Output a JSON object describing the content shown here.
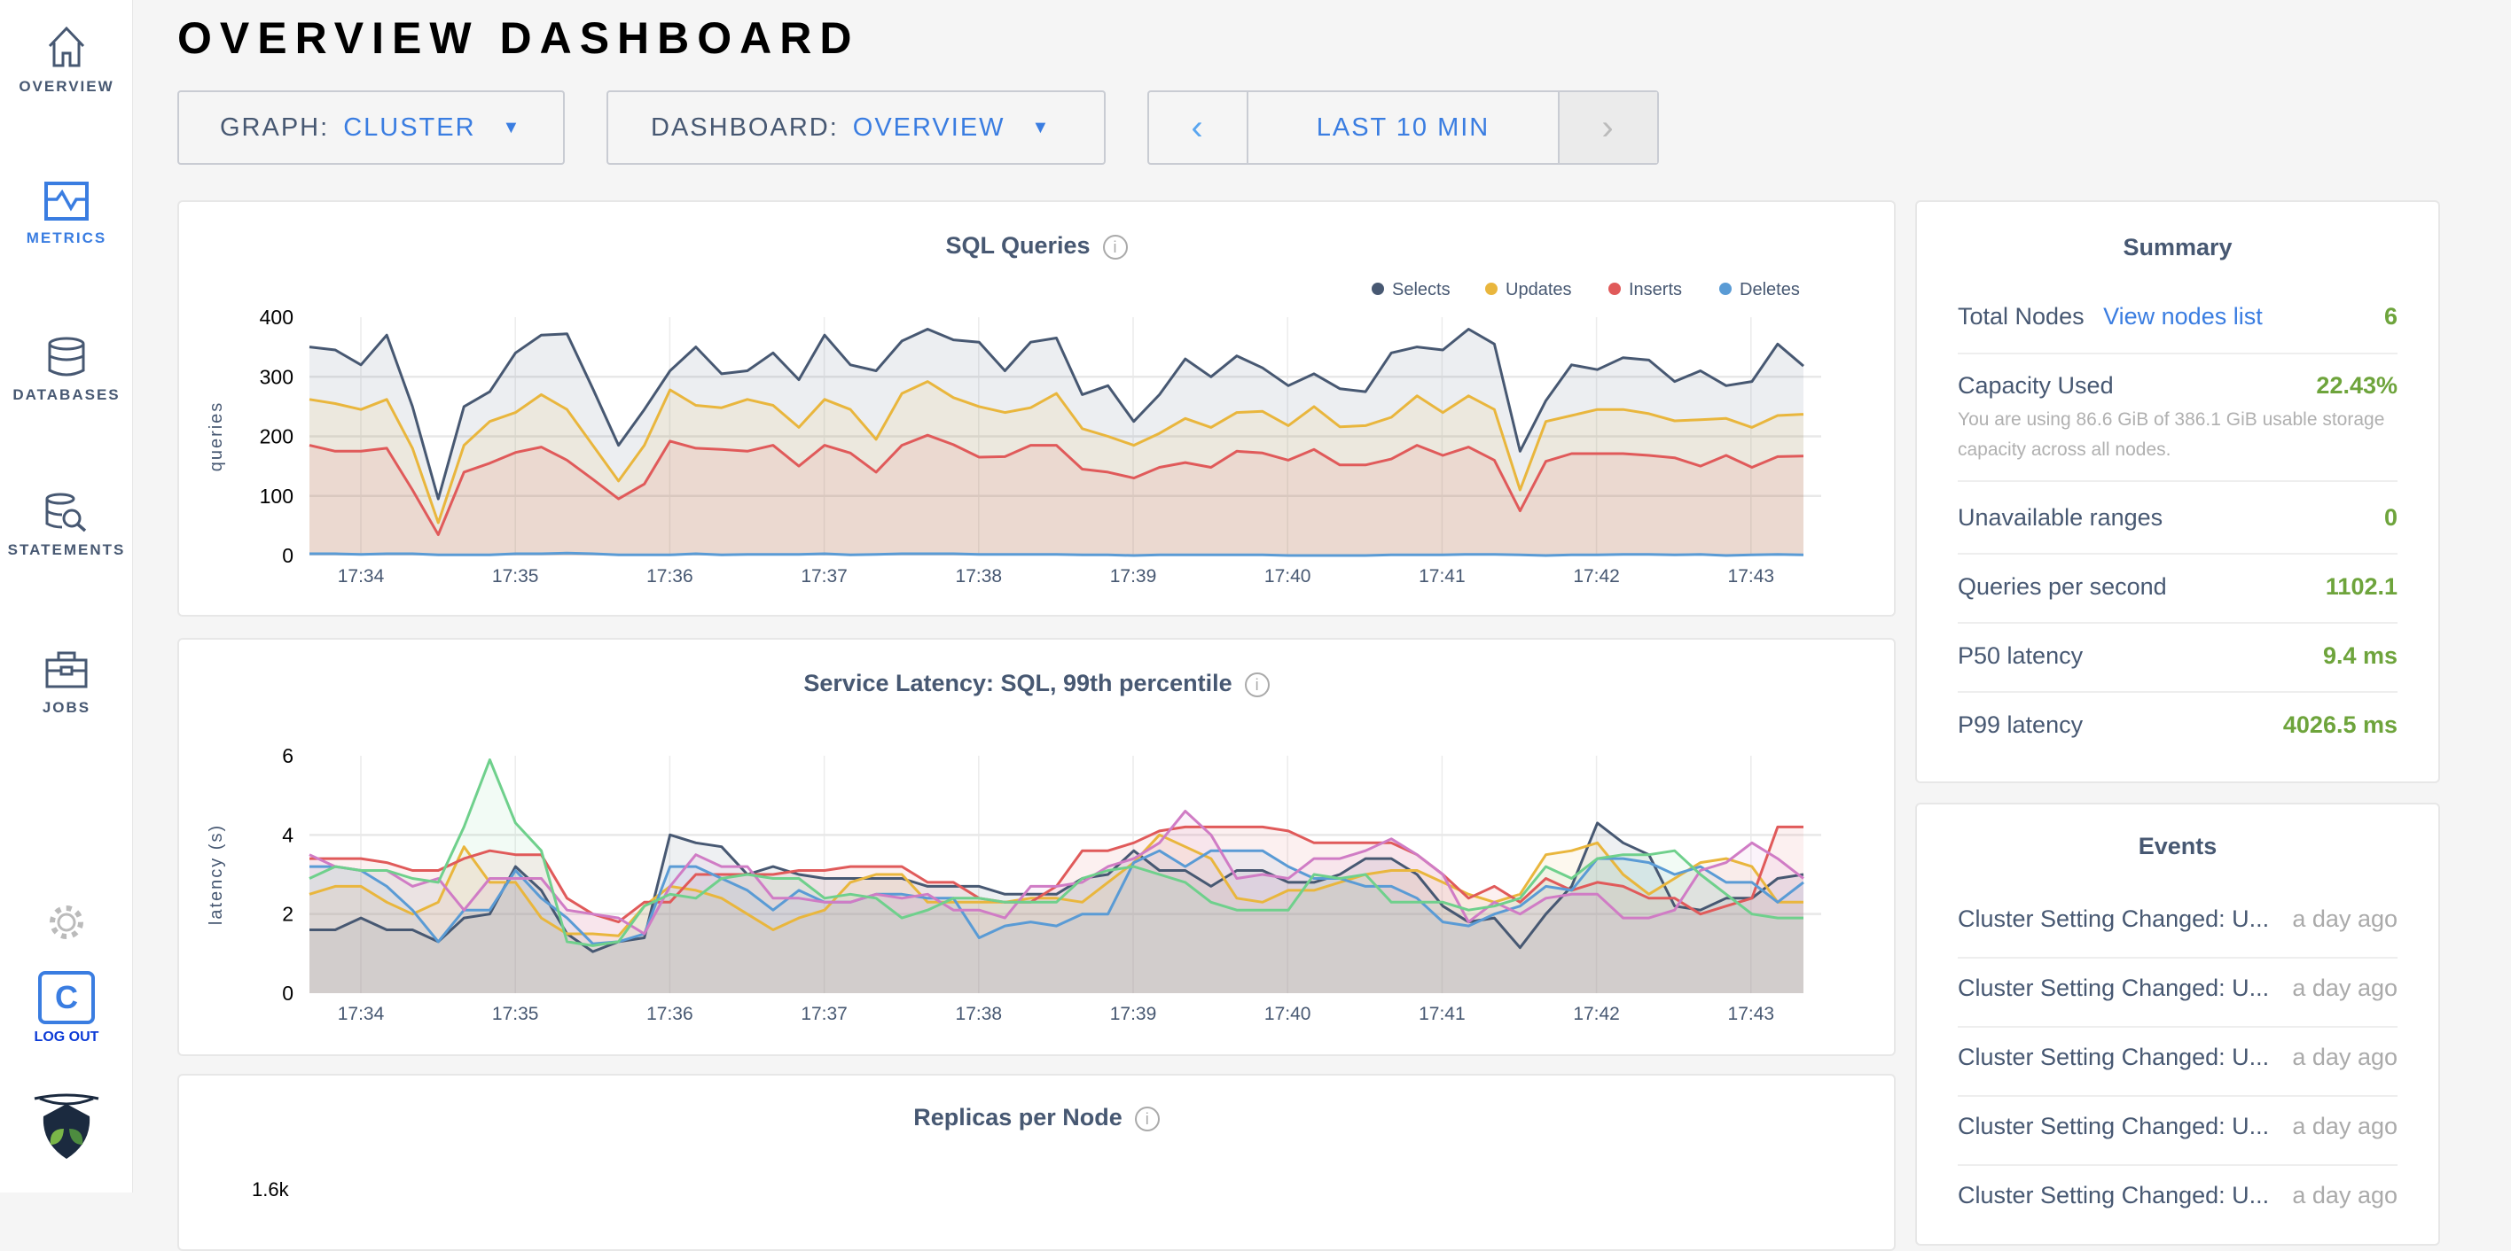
{
  "sidebar": {
    "items": [
      {
        "label": "OVERVIEW",
        "icon": "home-icon"
      },
      {
        "label": "METRICS",
        "icon": "metrics-icon"
      },
      {
        "label": "DATABASES",
        "icon": "database-icon"
      },
      {
        "label": "STATEMENTS",
        "icon": "statements-icon"
      },
      {
        "label": "JOBS",
        "icon": "briefcase-icon"
      }
    ],
    "logout_letter": "C",
    "logout": "LOG OUT"
  },
  "header": {
    "title": "OVERVIEW DASHBOARD"
  },
  "controls": {
    "graph_key": "GRAPH:",
    "graph_value": "CLUSTER",
    "dashboard_key": "DASHBOARD:",
    "dashboard_value": "OVERVIEW",
    "prev": "‹",
    "time": "LAST 10 MIN",
    "next": "›"
  },
  "colors": {
    "accent": "#3a7de1",
    "value_green": "#6ea43c"
  },
  "chart_data": [
    {
      "type": "area",
      "title": "SQL Queries",
      "ylabel": "queries",
      "ylim": [
        0,
        400
      ],
      "yticks": [
        "0",
        "100",
        "200",
        "300",
        "400"
      ],
      "xticks": [
        "17:34",
        "17:35",
        "17:36",
        "17:37",
        "17:38",
        "17:39",
        "17:40",
        "17:41",
        "17:42",
        "17:43"
      ],
      "legend": "top-right",
      "series": [
        {
          "name": "Selects",
          "color": "#475872",
          "values": [
            350,
            345,
            320,
            370,
            250,
            95,
            250,
            275,
            340,
            370,
            372,
            280,
            185,
            245,
            310,
            350,
            305,
            310,
            340,
            295,
            370,
            320,
            310,
            360,
            380,
            362,
            358,
            310,
            358,
            365,
            270,
            285,
            225,
            270,
            330,
            300,
            335,
            315,
            285,
            305,
            280,
            275,
            340,
            350,
            345,
            380,
            355,
            175,
            260,
            320,
            312,
            332,
            328,
            292,
            310,
            285,
            292,
            355,
            318
          ]
        },
        {
          "name": "Updates",
          "color": "#e9b63d",
          "values": [
            262,
            255,
            245,
            262,
            180,
            55,
            185,
            225,
            240,
            270,
            245,
            185,
            125,
            185,
            278,
            252,
            248,
            262,
            252,
            215,
            262,
            245,
            195,
            272,
            292,
            265,
            250,
            240,
            248,
            272,
            213,
            200,
            185,
            205,
            230,
            215,
            240,
            242,
            218,
            250,
            216,
            218,
            232,
            268,
            240,
            268,
            245,
            110,
            225,
            235,
            245,
            245,
            238,
            226,
            228,
            230,
            215,
            235,
            237
          ]
        },
        {
          "name": "Inserts",
          "color": "#e05a5a",
          "values": [
            185,
            175,
            175,
            180,
            110,
            35,
            140,
            155,
            173,
            182,
            160,
            128,
            95,
            120,
            192,
            180,
            178,
            175,
            185,
            150,
            185,
            172,
            140,
            185,
            202,
            186,
            165,
            166,
            185,
            185,
            145,
            140,
            130,
            148,
            156,
            148,
            175,
            172,
            160,
            178,
            152,
            152,
            162,
            185,
            168,
            182,
            160,
            75,
            158,
            171,
            171,
            171,
            168,
            164,
            150,
            168,
            148,
            166,
            167
          ]
        },
        {
          "name": "Deletes",
          "color": "#5a9bd5",
          "values": [
            3,
            3,
            2,
            3,
            3,
            1,
            1,
            1,
            3,
            3,
            4,
            3,
            1,
            1,
            1,
            3,
            1,
            2,
            2,
            2,
            3,
            1,
            2,
            3,
            3,
            3,
            2,
            2,
            2,
            2,
            1,
            1,
            0,
            1,
            1,
            1,
            1,
            1,
            0,
            0,
            0,
            0,
            1,
            1,
            1,
            2,
            2,
            1,
            0,
            1,
            1,
            2,
            2,
            1,
            2,
            0,
            1,
            2,
            1
          ]
        }
      ]
    },
    {
      "type": "area",
      "title": "Service Latency: SQL, 99th percentile",
      "ylabel": "latency (s)",
      "ylim": [
        0,
        6
      ],
      "yticks": [
        "0",
        "2",
        "4",
        "6"
      ],
      "xticks": [
        "17:34",
        "17:35",
        "17:36",
        "17:37",
        "17:38",
        "17:39",
        "17:40",
        "17:41",
        "17:42",
        "17:43"
      ],
      "series": [
        {
          "color": "#475872",
          "values": [
            1.6,
            1.6,
            1.9,
            1.6,
            1.6,
            1.3,
            1.9,
            2.0,
            3.2,
            2.6,
            1.5,
            1.05,
            1.3,
            1.4,
            4.0,
            3.8,
            3.7,
            3.0,
            3.2,
            3.0,
            2.9,
            2.9,
            2.9,
            2.9,
            2.7,
            2.7,
            2.7,
            2.5,
            2.5,
            2.5,
            2.9,
            3.0,
            3.6,
            3.1,
            3.1,
            2.7,
            3.1,
            3.1,
            2.8,
            2.8,
            3.0,
            3.4,
            3.4,
            3.0,
            2.2,
            1.8,
            1.9,
            1.15,
            2.0,
            2.7,
            4.3,
            3.8,
            3.5,
            2.2,
            2.1,
            2.4,
            2.4,
            2.9,
            3.0
          ]
        },
        {
          "color": "#e9b63d",
          "values": [
            2.5,
            2.7,
            2.7,
            2.3,
            2.0,
            2.3,
            3.7,
            2.8,
            2.8,
            1.9,
            1.5,
            1.5,
            1.45,
            2.2,
            2.7,
            2.6,
            2.4,
            2.0,
            1.6,
            1.9,
            2.1,
            2.8,
            3.0,
            3.0,
            2.3,
            2.3,
            2.3,
            2.3,
            2.4,
            2.4,
            2.3,
            2.8,
            3.3,
            4.0,
            3.7,
            3.4,
            2.4,
            2.3,
            2.6,
            2.6,
            2.8,
            3.0,
            3.1,
            3.1,
            2.8,
            2.5,
            2.3,
            2.5,
            3.5,
            3.6,
            3.8,
            3.0,
            2.5,
            2.9,
            3.3,
            3.4,
            3.2,
            2.3,
            2.3
          ]
        },
        {
          "color": "#e05a5a",
          "values": [
            3.4,
            3.4,
            3.4,
            3.3,
            3.1,
            3.1,
            3.4,
            3.6,
            3.5,
            3.5,
            2.4,
            2.0,
            1.8,
            2.3,
            2.3,
            3.0,
            3.0,
            3.0,
            3.0,
            3.1,
            3.1,
            3.2,
            3.2,
            3.2,
            2.8,
            2.8,
            2.4,
            2.3,
            2.3,
            2.7,
            3.6,
            3.6,
            3.8,
            4.1,
            4.2,
            4.2,
            4.2,
            4.2,
            4.1,
            3.8,
            3.8,
            3.8,
            3.8,
            3.5,
            3.0,
            2.4,
            2.7,
            2.3,
            2.9,
            2.6,
            2.8,
            2.7,
            2.4,
            2.4,
            2.0,
            2.2,
            2.4,
            4.2,
            4.2
          ]
        },
        {
          "color": "#5a9bd5",
          "values": [
            3.2,
            3.2,
            3.1,
            2.7,
            2.1,
            1.3,
            2.1,
            2.1,
            3.1,
            2.4,
            1.9,
            1.25,
            1.3,
            1.5,
            3.2,
            3.2,
            2.9,
            2.6,
            2.1,
            2.6,
            2.3,
            2.3,
            2.5,
            2.5,
            2.4,
            2.4,
            1.4,
            1.7,
            1.8,
            1.7,
            2.0,
            2.0,
            3.3,
            3.6,
            3.2,
            3.6,
            3.6,
            3.6,
            3.2,
            2.9,
            2.9,
            2.7,
            2.7,
            2.4,
            1.8,
            1.7,
            2.0,
            2.2,
            2.7,
            2.6,
            3.4,
            3.4,
            3.3,
            3.0,
            3.2,
            2.8,
            2.8,
            2.3,
            2.8
          ]
        },
        {
          "color": "#d07cc5",
          "values": [
            3.5,
            3.2,
            3.1,
            3.1,
            2.7,
            2.9,
            2.1,
            2.9,
            2.9,
            2.9,
            2.1,
            2.0,
            1.9,
            1.5,
            2.7,
            3.5,
            3.2,
            3.2,
            2.4,
            2.4,
            2.3,
            2.3,
            2.5,
            2.4,
            2.5,
            2.1,
            2.1,
            1.9,
            2.7,
            2.7,
            2.8,
            3.2,
            3.4,
            3.8,
            4.6,
            4.0,
            2.9,
            3.0,
            2.9,
            3.4,
            3.4,
            3.6,
            3.9,
            3.5,
            3.0,
            1.8,
            2.3,
            2.0,
            2.4,
            2.5,
            2.5,
            1.9,
            1.9,
            2.1,
            3.1,
            3.3,
            3.8,
            3.4,
            2.9
          ]
        },
        {
          "color": "#6fd08c",
          "values": [
            2.9,
            3.2,
            3.1,
            3.1,
            2.9,
            2.8,
            4.2,
            5.9,
            4.3,
            3.6,
            1.3,
            1.2,
            1.3,
            2.2,
            2.5,
            2.4,
            2.9,
            3.0,
            2.9,
            2.9,
            2.4,
            2.5,
            2.4,
            1.9,
            2.1,
            2.4,
            2.4,
            2.3,
            2.3,
            2.3,
            2.9,
            3.1,
            3.2,
            3.0,
            2.8,
            2.3,
            2.1,
            2.1,
            2.1,
            3.0,
            2.9,
            3.0,
            2.3,
            2.3,
            2.3,
            2.1,
            2.2,
            2.4,
            3.2,
            2.9,
            3.4,
            3.5,
            3.5,
            3.6,
            3.0,
            2.5,
            2.0,
            1.9,
            1.9
          ]
        }
      ]
    },
    {
      "type": "area",
      "title": "Replicas per Node",
      "yticks": [
        "1.6k"
      ]
    }
  ],
  "summary": {
    "title": "Summary",
    "total_nodes_label": "Total Nodes",
    "view_nodes_link": "View nodes list",
    "total_nodes": "6",
    "capacity_label": "Capacity Used",
    "capacity": "22.43%",
    "capacity_note": "You are using 86.6 GiB of 386.1 GiB usable storage capacity across all nodes.",
    "unavailable_label": "Unavailable ranges",
    "unavailable": "0",
    "qps_label": "Queries per second",
    "qps": "1102.1",
    "p50_label": "P50 latency",
    "p50": "9.4 ms",
    "p99_label": "P99 latency",
    "p99": "4026.5 ms"
  },
  "events": {
    "title": "Events",
    "items": [
      {
        "text": "Cluster Setting Changed: U...",
        "time": "a day ago"
      },
      {
        "text": "Cluster Setting Changed: U...",
        "time": "a day ago"
      },
      {
        "text": "Cluster Setting Changed: U...",
        "time": "a day ago"
      },
      {
        "text": "Cluster Setting Changed: U...",
        "time": "a day ago"
      },
      {
        "text": "Cluster Setting Changed: U...",
        "time": "a day ago"
      }
    ]
  }
}
